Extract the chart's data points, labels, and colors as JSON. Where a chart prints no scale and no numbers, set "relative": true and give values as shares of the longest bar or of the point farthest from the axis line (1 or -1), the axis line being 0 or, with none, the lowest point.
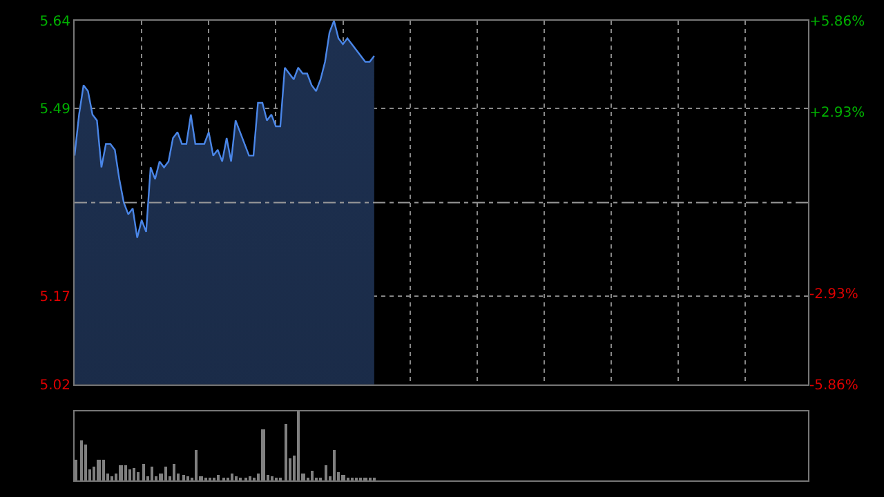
{
  "chart_data": [
    {
      "type": "area",
      "categories": [
        null,
        null,
        null,
        null,
        null,
        null,
        null,
        null,
        null,
        null,
        null,
        null,
        null,
        null,
        null,
        null,
        null,
        null,
        null,
        null,
        null,
        null,
        null,
        null,
        null,
        null,
        null,
        null,
        null,
        null,
        null,
        null,
        null,
        null,
        null,
        null,
        null,
        null,
        null,
        null,
        null,
        null,
        null,
        null,
        null,
        null,
        null,
        null,
        null,
        null,
        null,
        null,
        null,
        null,
        null,
        null,
        null,
        null,
        null,
        null,
        null,
        null,
        null,
        null,
        null,
        null,
        null,
        null,
        null,
        null,
        null,
        null,
        null,
        null,
        null,
        null,
        null,
        null,
        null,
        null,
        null,
        null,
        null,
        null,
        null,
        null,
        null,
        null,
        null,
        null,
        null,
        null,
        null,
        null,
        null,
        null,
        null,
        null,
        null,
        null,
        null,
        null,
        null,
        null,
        null,
        null,
        null,
        null,
        null,
        null,
        null,
        null,
        null,
        null,
        null,
        null,
        null,
        null,
        null,
        null,
        null,
        null,
        null,
        null,
        null,
        null,
        null,
        null,
        null,
        null,
        null,
        null,
        null,
        null,
        null,
        null,
        null,
        null,
        null,
        null,
        null,
        null,
        null,
        null,
        null,
        null,
        null,
        null,
        null,
        null,
        null,
        null,
        null,
        null,
        null,
        null,
        null,
        null,
        null,
        null,
        null,
        null,
        null,
        null,
        null
      ],
      "values": [
        5.41,
        5.48,
        5.53,
        5.52,
        5.48,
        5.47,
        5.39,
        5.43,
        5.43,
        5.42,
        5.37,
        5.33,
        5.31,
        5.32,
        5.27,
        5.3,
        5.28,
        5.39,
        5.37,
        5.4,
        5.39,
        5.4,
        5.44,
        5.45,
        5.43,
        5.43,
        5.48,
        5.43,
        5.43,
        5.43,
        5.45,
        5.41,
        5.42,
        5.4,
        5.44,
        5.4,
        5.47,
        5.45,
        5.43,
        5.41,
        5.41,
        5.5,
        5.5,
        5.47,
        5.48,
        5.46,
        5.46,
        5.56,
        5.55,
        5.54,
        5.56,
        5.55,
        5.55,
        5.53,
        5.52,
        5.54,
        5.57,
        5.62,
        5.64,
        5.61,
        5.6,
        5.61,
        5.6,
        5.59,
        5.58,
        5.57,
        5.57,
        5.58,
        null,
        null,
        null,
        null,
        null,
        null,
        null,
        null,
        null,
        null,
        null,
        null,
        null,
        null,
        null,
        null,
        null,
        null,
        null,
        null,
        null,
        null,
        null,
        null,
        null,
        null,
        null,
        null,
        null,
        null,
        null,
        null,
        null,
        null,
        null,
        null,
        null,
        null,
        null,
        null,
        null,
        null,
        null,
        null,
        null,
        null,
        null,
        null,
        null,
        null,
        null,
        null,
        null,
        null,
        null,
        null,
        null,
        null,
        null,
        null,
        null,
        null,
        null,
        null,
        null,
        null,
        null,
        null,
        null,
        null,
        null,
        null,
        null,
        null,
        null,
        null,
        null,
        null,
        null,
        null,
        null,
        null,
        null,
        null,
        null,
        null,
        null,
        null,
        null,
        null,
        null,
        null,
        null,
        null,
        null,
        null,
        null
      ],
      "color": "#4a86e8",
      "ylim": [
        5.02,
        5.64
      ],
      "yticks": [
        5.02,
        5.17,
        5.49,
        5.64
      ],
      "y2lim": [
        -5.86,
        5.86
      ],
      "y2ticks": [
        {
          "value": -5.86,
          "label": "-5.86%"
        },
        {
          "value": -2.93,
          "label": "-2.93%"
        },
        {
          "value": 2.93,
          "label": "+2.93%"
        },
        {
          "value": 5.86,
          "label": "+5.86%"
        }
      ],
      "ref_lines": [
        {
          "axis": "y",
          "value": 5.33,
          "color": "#999999",
          "line_style": "dashed"
        }
      ],
      "grid": true,
      "tick_labels": "y"
    },
    {
      "type": "bar",
      "relative": true,
      "color": "#808080",
      "categories": [
        null,
        null,
        null,
        null,
        null,
        null,
        null,
        null,
        null,
        null,
        null,
        null,
        null,
        null,
        null,
        null,
        null,
        null,
        null,
        null,
        null,
        null,
        null,
        null,
        null,
        null,
        null,
        null,
        null,
        null,
        null,
        null,
        null,
        null,
        null,
        null,
        null,
        null,
        null,
        null,
        null,
        null,
        null,
        null,
        null,
        null,
        null,
        null,
        null,
        null,
        null,
        null,
        null,
        null,
        null,
        null,
        null,
        null,
        null,
        null,
        null,
        null,
        null,
        null,
        null,
        null,
        null,
        null,
        null,
        null,
        null,
        null,
        null,
        null,
        null,
        null,
        null,
        null,
        null,
        null,
        null,
        null,
        null,
        null,
        null,
        null,
        null,
        null,
        null,
        null,
        null,
        null,
        null,
        null,
        null,
        null,
        null,
        null,
        null,
        null,
        null,
        null,
        null,
        null,
        null,
        null,
        null,
        null,
        null,
        null,
        null,
        null,
        null,
        null,
        null,
        null,
        null,
        null,
        null,
        null,
        null,
        null,
        null,
        null,
        null,
        null,
        null,
        null,
        null,
        null,
        null,
        null,
        null,
        null,
        null,
        null,
        null,
        null,
        null,
        null,
        null,
        null,
        null,
        null,
        null,
        null,
        null,
        null,
        null,
        null,
        null,
        null,
        null,
        null,
        null,
        null,
        null,
        null,
        null,
        null,
        null,
        null,
        null,
        null,
        null
      ],
      "values": [
        0.3,
        0.57,
        0.51,
        0.16,
        0.2,
        0.3,
        0.29,
        0.09,
        0.05,
        0.1,
        0.22,
        0.22,
        0.16,
        0.17,
        0.12,
        0.24,
        0.05,
        0.2,
        0.05,
        0.1,
        0.2,
        0.05,
        0.24,
        0.1,
        0.07,
        0.05,
        0.03,
        0.43,
        0.05,
        0.02,
        0.03,
        0.02,
        0.07,
        0.02,
        0.02,
        0.09,
        0.05,
        0.03,
        0.02,
        0.05,
        0.02,
        0.09,
        0.73,
        0.07,
        0.05,
        0.03,
        0.02,
        0.82,
        0.32,
        0.36,
        1.0,
        0.09,
        0.02,
        0.14,
        0.03,
        0.02,
        0.22,
        0.05,
        0.43,
        0.12,
        0.07,
        0.03,
        0.02,
        0.02,
        0.03,
        0.02,
        0.03,
        0.02,
        null,
        null,
        null,
        null,
        null,
        null,
        null,
        null,
        null,
        null,
        null,
        null,
        null,
        null,
        null,
        null,
        null,
        null,
        null,
        null,
        null,
        null,
        null,
        null,
        null,
        null,
        null,
        null,
        null,
        null,
        null,
        null,
        null,
        null,
        null,
        null,
        null,
        null,
        null,
        null,
        null,
        null,
        null,
        null,
        null,
        null,
        null,
        null,
        null,
        null,
        null,
        null,
        null,
        null,
        null,
        null,
        null,
        null,
        null,
        null,
        null,
        null,
        null,
        null,
        null,
        null,
        null,
        null,
        null,
        null,
        null,
        null,
        null,
        null,
        null,
        null,
        null,
        null,
        null,
        null,
        null,
        null,
        null,
        null,
        null,
        null,
        null,
        null,
        null,
        null,
        null,
        null,
        null,
        null,
        null,
        null,
        null
      ],
      "tick_labels": false
    }
  ]
}
